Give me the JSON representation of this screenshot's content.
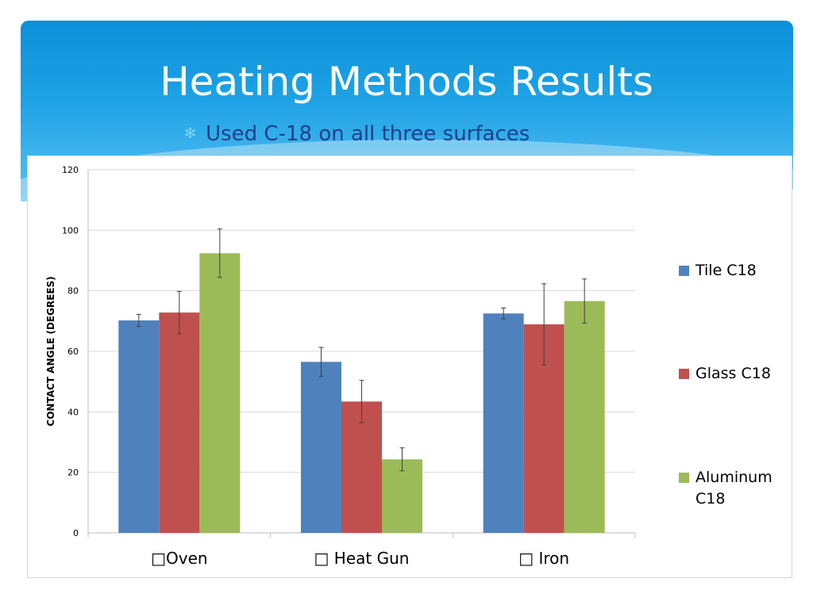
{
  "slide": {
    "title": "Heating Methods Results",
    "bullet": "Used C-18 on all three surfaces"
  },
  "chart_data": {
    "type": "bar",
    "categories": [
      "□Oven",
      "□ Heat Gun",
      "□ Iron"
    ],
    "series": [
      {
        "name": "Tile C18",
        "color": "#4f81bd",
        "values": [
          70.2,
          56.5,
          72.5
        ],
        "errors": [
          2.0,
          4.8,
          1.8
        ]
      },
      {
        "name": "Glass C18",
        "color": "#c0504d",
        "values": [
          72.8,
          43.4,
          68.9
        ],
        "errors": [
          7.0,
          7.0,
          13.4
        ]
      },
      {
        "name": "Aluminum C18",
        "color": "#9bbb59",
        "values": [
          92.4,
          24.3,
          76.6
        ],
        "errors": [
          8.0,
          3.8,
          7.3
        ]
      }
    ],
    "xlabel": "",
    "ylabel": "CONTACT ANGLE (DEGREES)",
    "ylim": [
      0,
      120
    ],
    "yticks": [
      0,
      20,
      40,
      60,
      80,
      100,
      120
    ],
    "grid": true,
    "legend": "right"
  }
}
